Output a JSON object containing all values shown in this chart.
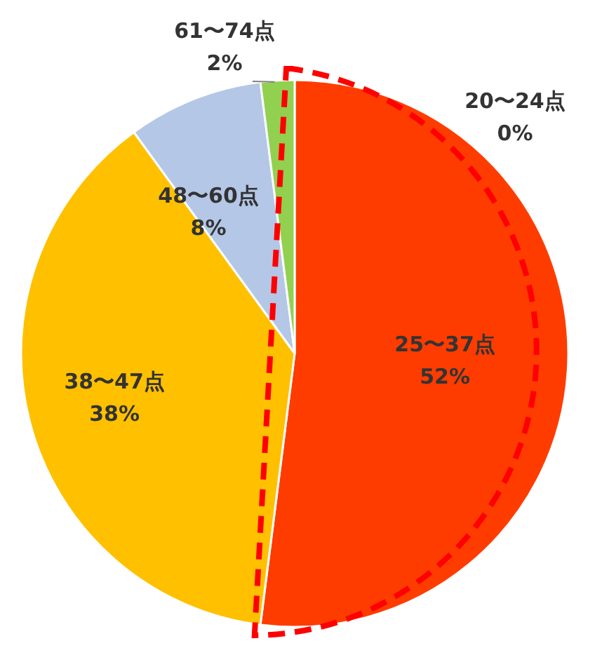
{
  "chart_data": {
    "type": "pie",
    "categories": [
      "20〜24点",
      "25〜37点",
      "38〜47点",
      "48〜60点",
      "61〜74点"
    ],
    "values": [
      0,
      52,
      38,
      8,
      2
    ],
    "value_labels": [
      "0%",
      "52%",
      "38%",
      "8%",
      "2%"
    ],
    "colors": [
      "#ff0000",
      "#ff3c00",
      "#ffc000",
      "#b4c7e7",
      "#92d050"
    ]
  }
}
